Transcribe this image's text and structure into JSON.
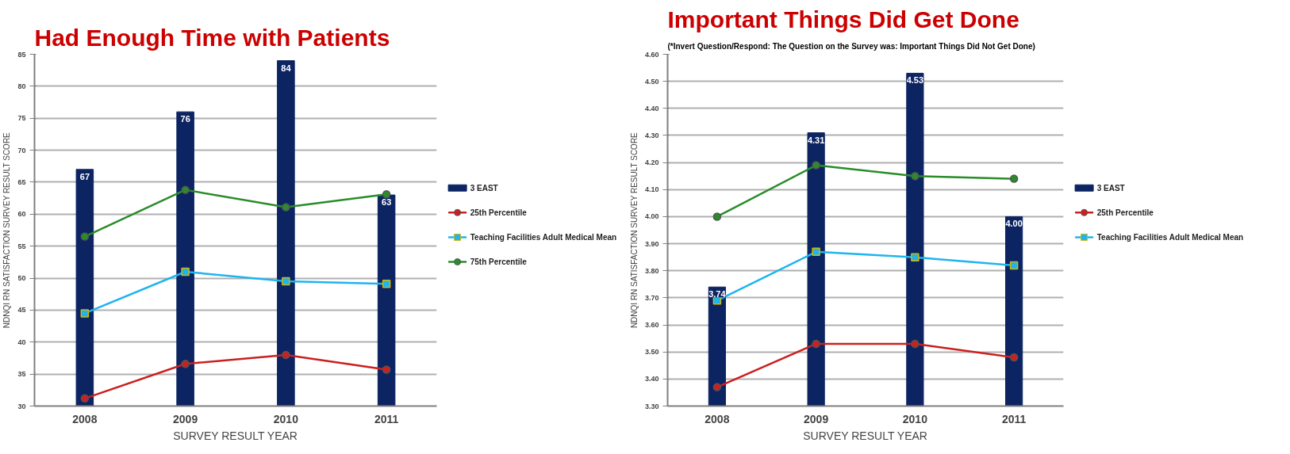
{
  "chart_data": [
    {
      "type": "bar",
      "title": "Had Enough Time with Patients",
      "xlabel": "SURVEY RESULT YEAR",
      "ylabel": "NDNQI RN SATISFACTION SURVEY RESULT SCORE",
      "categories": [
        "2008",
        "2009",
        "2010",
        "2011"
      ],
      "ylim": [
        30,
        85
      ],
      "yticks": [
        30,
        35,
        40,
        45,
        50,
        55,
        60,
        65,
        70,
        75,
        80,
        85
      ],
      "grid": "y",
      "legend": "right",
      "series": [
        {
          "name": "3 EAST",
          "color": "#0c2461",
          "values": [
            67,
            76,
            84,
            63
          ],
          "value_labels": [
            "67",
            "76",
            "84",
            "63"
          ]
        },
        {
          "name": "25th Percentile",
          "type": "line",
          "marker": "circle",
          "color": "#cc1f1f",
          "values": [
            31.2,
            36.6,
            38.0,
            35.7
          ]
        },
        {
          "name": "Teaching Facilities  Adult Medical Mean",
          "type": "line",
          "marker": "square",
          "color": "#1eb4f0",
          "values": [
            44.5,
            51.0,
            49.5,
            49.1
          ]
        },
        {
          "name": "75th Percentile",
          "type": "line",
          "marker": "circle",
          "color": "#2a8c2a",
          "values": [
            56.5,
            63.8,
            61.1,
            63.1
          ]
        }
      ]
    },
    {
      "type": "bar",
      "title": "Important Things Did Get Done",
      "subtitle": "(*Invert Question/Respond: The Question on the Survey was: Important Things Did Not Get Done)",
      "xlabel": "SURVEY RESULT YEAR",
      "ylabel": "NDNQI RN SATISFACTION SURVEY RESULT SCORE",
      "categories": [
        "2008",
        "2009",
        "2010",
        "2011"
      ],
      "ylim": [
        3.3,
        4.6
      ],
      "yticks": [
        {
          "value": 3.3,
          "label": "3.30"
        },
        {
          "value": 3.4,
          "label": "3.40"
        },
        {
          "value": 3.5,
          "label": "3.50"
        },
        {
          "value": 3.6,
          "label": "3.60"
        },
        {
          "value": 3.7,
          "label": "3.70"
        },
        {
          "value": 3.8,
          "label": "3.80"
        },
        {
          "value": 3.9,
          "label": "3.90"
        },
        {
          "value": 4.0,
          "label": "4.00"
        },
        {
          "value": 4.1,
          "label": "4.10"
        },
        {
          "value": 4.2,
          "label": "4.20"
        },
        {
          "value": 4.3,
          "label": "4.30"
        },
        {
          "value": 4.4,
          "label": "4.40"
        },
        {
          "value": 4.5,
          "label": "4.50"
        },
        {
          "value": 4.6,
          "label": "4.60"
        }
      ],
      "grid": "y",
      "legend": "right",
      "series": [
        {
          "name": "3 EAST",
          "color": "#0c2461",
          "values": [
            3.74,
            4.31,
            4.53,
            4.0
          ],
          "value_labels": [
            "3.74",
            "4.31",
            "4.53",
            "4.00"
          ]
        },
        {
          "name": "25th Percentile",
          "type": "line",
          "marker": "circle",
          "color": "#cc1f1f",
          "values": [
            3.37,
            3.53,
            3.53,
            3.48
          ]
        },
        {
          "name": "Teaching Facilities  Adult Medical Mean",
          "type": "line",
          "marker": "square",
          "color": "#1eb4f0",
          "values": [
            3.69,
            3.87,
            3.85,
            3.82
          ]
        },
        {
          "type": "line",
          "marker": "circle",
          "color": "#2a8c2a",
          "values": [
            4.0,
            4.19,
            4.15,
            4.14
          ]
        }
      ]
    }
  ]
}
